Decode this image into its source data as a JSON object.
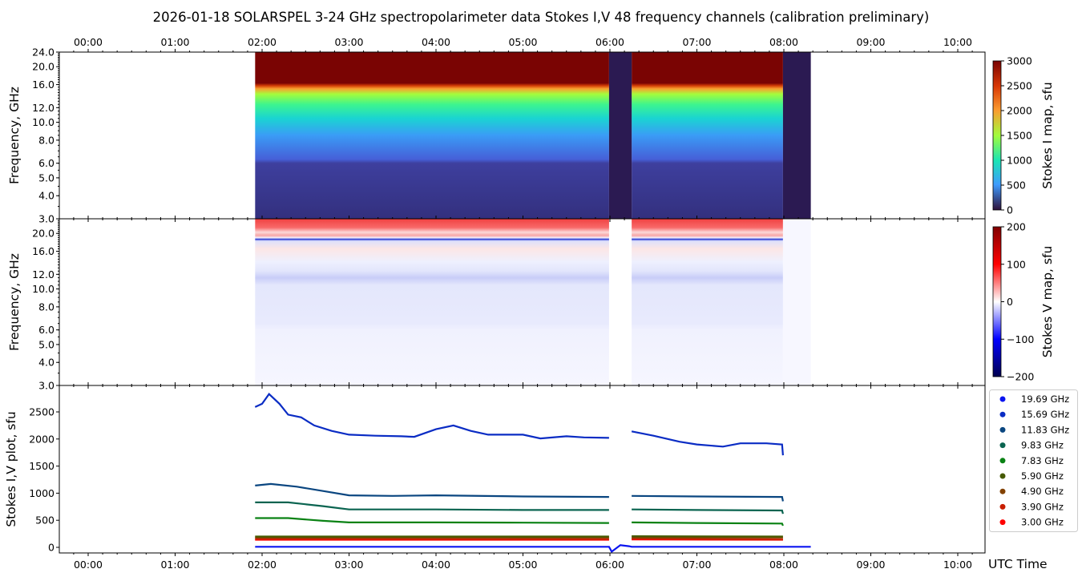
{
  "title": "2026-01-18  SOLARSPEL  3-24 GHz spectropolarimeter data   Stokes I,V   48 frequency channels   (calibration preliminary)",
  "chart_data": [
    {
      "type": "heatmap",
      "name": "stokes-i-map",
      "ylabel": "Frequency, GHz",
      "yscale": "log",
      "ylim": [
        3.0,
        24.0
      ],
      "yticks": [
        "3.0",
        "4.0",
        "5.0",
        "6.0",
        "8.0",
        "10.0",
        "12.0",
        "16.0",
        "20.0",
        "24.0"
      ],
      "xlim_hours": [
        -0.33,
        10.3
      ],
      "xticks": [
        "00:00",
        "01:00",
        "02:00",
        "03:00",
        "04:00",
        "05:00",
        "06:00",
        "07:00",
        "08:00",
        "09:00",
        "10:00"
      ],
      "data_intervals_hours": [
        [
          1.92,
          5.99
        ],
        [
          6.25,
          7.99
        ]
      ],
      "gap_intervals_hours": [
        [
          5.99,
          6.25
        ],
        [
          7.99,
          8.31
        ]
      ],
      "colorbar": {
        "label": "Stokes I map, sfu",
        "range": [
          0,
          3000
        ],
        "ticks": [
          "0",
          "500",
          "1000",
          "1500",
          "2000",
          "2500",
          "3000"
        ]
      }
    },
    {
      "type": "heatmap",
      "name": "stokes-v-map",
      "ylabel": "Frequency, GHz",
      "yscale": "log",
      "ylim": [
        3.0,
        24.0
      ],
      "yticks": [
        "3.0",
        "4.0",
        "5.0",
        "6.0",
        "8.0",
        "10.0",
        "12.0",
        "16.0",
        "20.0"
      ],
      "colorbar": {
        "label": "Stokes V map, sfu",
        "range": [
          -200,
          200
        ],
        "ticks": [
          "−200",
          "−100",
          "0",
          "100",
          "200"
        ]
      }
    },
    {
      "type": "line",
      "name": "stokes-iv-plot",
      "ylabel": "Stokes I,V plot, sfu",
      "xlabel": "UTC Time",
      "ylim": [
        -100,
        2880
      ],
      "yticks": [
        "0",
        "500",
        "1000",
        "1500",
        "2000",
        "2500"
      ],
      "legend_position": "right",
      "series": [
        {
          "name": "19.69 GHz",
          "color": "#0a14f0",
          "x": [
            1.92,
            5.99,
            6.02,
            6.12,
            6.22,
            6.25,
            8.31
          ],
          "y": [
            10,
            10,
            -80,
            40,
            20,
            10,
            10
          ]
        },
        {
          "name": "15.69 GHz",
          "color": "#0a2cc4",
          "x": [
            1.92,
            2.0,
            2.08,
            2.2,
            2.3,
            2.45,
            2.6,
            2.8,
            3.0,
            3.3,
            3.6,
            3.75,
            4.0,
            4.2,
            4.4,
            4.6,
            5.0,
            5.2,
            5.5,
            5.7,
            5.99,
            null,
            6.25,
            6.5,
            6.8,
            7.0,
            7.3,
            7.5,
            7.8,
            7.98,
            7.99
          ],
          "y": [
            2590,
            2650,
            2830,
            2650,
            2450,
            2400,
            2250,
            2150,
            2080,
            2060,
            2050,
            2040,
            2180,
            2250,
            2150,
            2080,
            2080,
            2010,
            2050,
            2030,
            2020,
            null,
            2140,
            2060,
            1950,
            1900,
            1860,
            1920,
            1920,
            1900,
            1700
          ]
        },
        {
          "name": "11.83 GHz",
          "color": "#0a4680",
          "x": [
            1.92,
            2.1,
            2.4,
            2.7,
            3.0,
            3.5,
            4.0,
            5.0,
            5.99,
            null,
            6.25,
            7.0,
            7.98,
            7.99
          ],
          "y": [
            1140,
            1170,
            1120,
            1040,
            960,
            950,
            960,
            940,
            930,
            null,
            950,
            940,
            930,
            850
          ]
        },
        {
          "name": "9.83 GHz",
          "color": "#0a6450",
          "x": [
            1.92,
            2.3,
            2.7,
            3.0,
            4.0,
            5.0,
            5.99,
            null,
            6.25,
            7.0,
            7.98,
            7.99
          ],
          "y": [
            830,
            830,
            760,
            700,
            700,
            690,
            690,
            null,
            700,
            690,
            680,
            620
          ]
        },
        {
          "name": "7.83 GHz",
          "color": "#0a8214",
          "x": [
            1.92,
            2.3,
            2.7,
            3.0,
            4.0,
            5.0,
            5.99,
            null,
            6.25,
            7.0,
            7.98,
            7.99
          ],
          "y": [
            540,
            540,
            490,
            460,
            460,
            455,
            450,
            null,
            460,
            450,
            440,
            400
          ]
        },
        {
          "name": "5.90 GHz",
          "color": "#465a00",
          "x": [
            1.92,
            5.99,
            null,
            6.25,
            7.99
          ],
          "y": [
            200,
            200,
            null,
            205,
            200
          ]
        },
        {
          "name": "4.90 GHz",
          "color": "#824100",
          "x": [
            1.92,
            5.99,
            null,
            6.25,
            7.99
          ],
          "y": [
            180,
            180,
            null,
            180,
            180
          ]
        },
        {
          "name": "3.90 GHz",
          "color": "#c81e00",
          "x": [
            1.92,
            5.99,
            null,
            6.25,
            7.99
          ],
          "y": [
            155,
            150,
            null,
            160,
            145
          ]
        },
        {
          "name": "3.00 GHz",
          "color": "#ff0000",
          "x": [
            1.92,
            5.99,
            null,
            6.25,
            7.99
          ],
          "y": [
            140,
            140,
            null,
            145,
            140
          ]
        }
      ]
    }
  ]
}
